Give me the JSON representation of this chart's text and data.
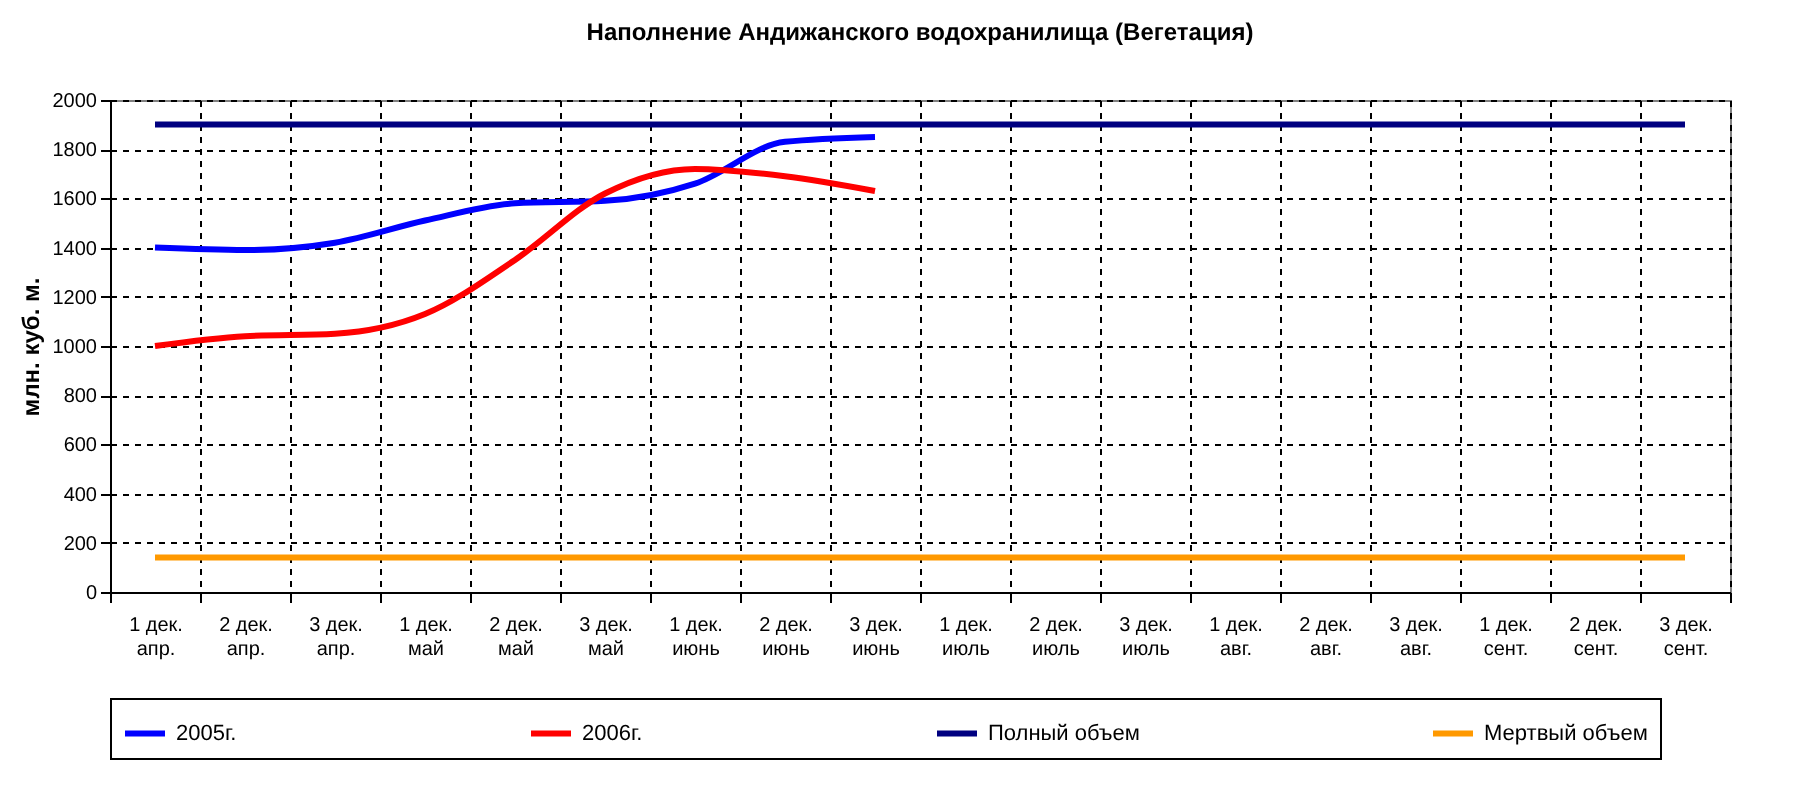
{
  "chart_data": {
    "type": "line",
    "title": "Наполнение Андижанского водохранилища (Вегетация)",
    "ylabel": "млн. куб. м.",
    "categories": [
      "1 дек. апр.",
      "2 дек. апр.",
      "3 дек. апр.",
      "1 дек. май",
      "2 дек. май",
      "3 дек. май",
      "1 дек. июнь",
      "2 дек. июнь",
      "3 дек. июнь",
      "1 дек. июль",
      "2 дек. июль",
      "3 дек. июль",
      "1 дек. авг.",
      "2 дек. авг.",
      "3 дек. авг.",
      "1 дек. сент.",
      "2 дек. сент.",
      "3 дек. сент."
    ],
    "series": [
      {
        "name": "2005г.",
        "color": "#0000ff",
        "values": [
          1400,
          1390,
          1420,
          1510,
          1580,
          1590,
          1660,
          1830,
          1850,
          null,
          null,
          null,
          null,
          null,
          null,
          null,
          null,
          null
        ]
      },
      {
        "name": "2006г.",
        "color": "#ff0000",
        "values": [
          1000,
          1040,
          1050,
          1130,
          1350,
          1620,
          1720,
          1690,
          1630,
          null,
          null,
          null,
          null,
          null,
          null,
          null,
          null,
          null
        ]
      },
      {
        "name": "Полный объем",
        "color": "#000080",
        "values": [
          1900,
          1900,
          1900,
          1900,
          1900,
          1900,
          1900,
          1900,
          1900,
          1900,
          1900,
          1900,
          1900,
          1900,
          1900,
          1900,
          1900,
          1900
        ]
      },
      {
        "name": "Мертвый объем",
        "color": "#ff9900",
        "values": [
          140,
          140,
          140,
          140,
          140,
          140,
          140,
          140,
          140,
          140,
          140,
          140,
          140,
          140,
          140,
          140,
          140,
          140
        ]
      }
    ],
    "ylim": [
      0,
      2000
    ],
    "yticks": [
      0,
      200,
      400,
      600,
      800,
      1000,
      1200,
      1400,
      1600,
      1800,
      2000
    ],
    "grid": true,
    "legend": "bottom",
    "marker": "none",
    "line_style": "solid"
  }
}
